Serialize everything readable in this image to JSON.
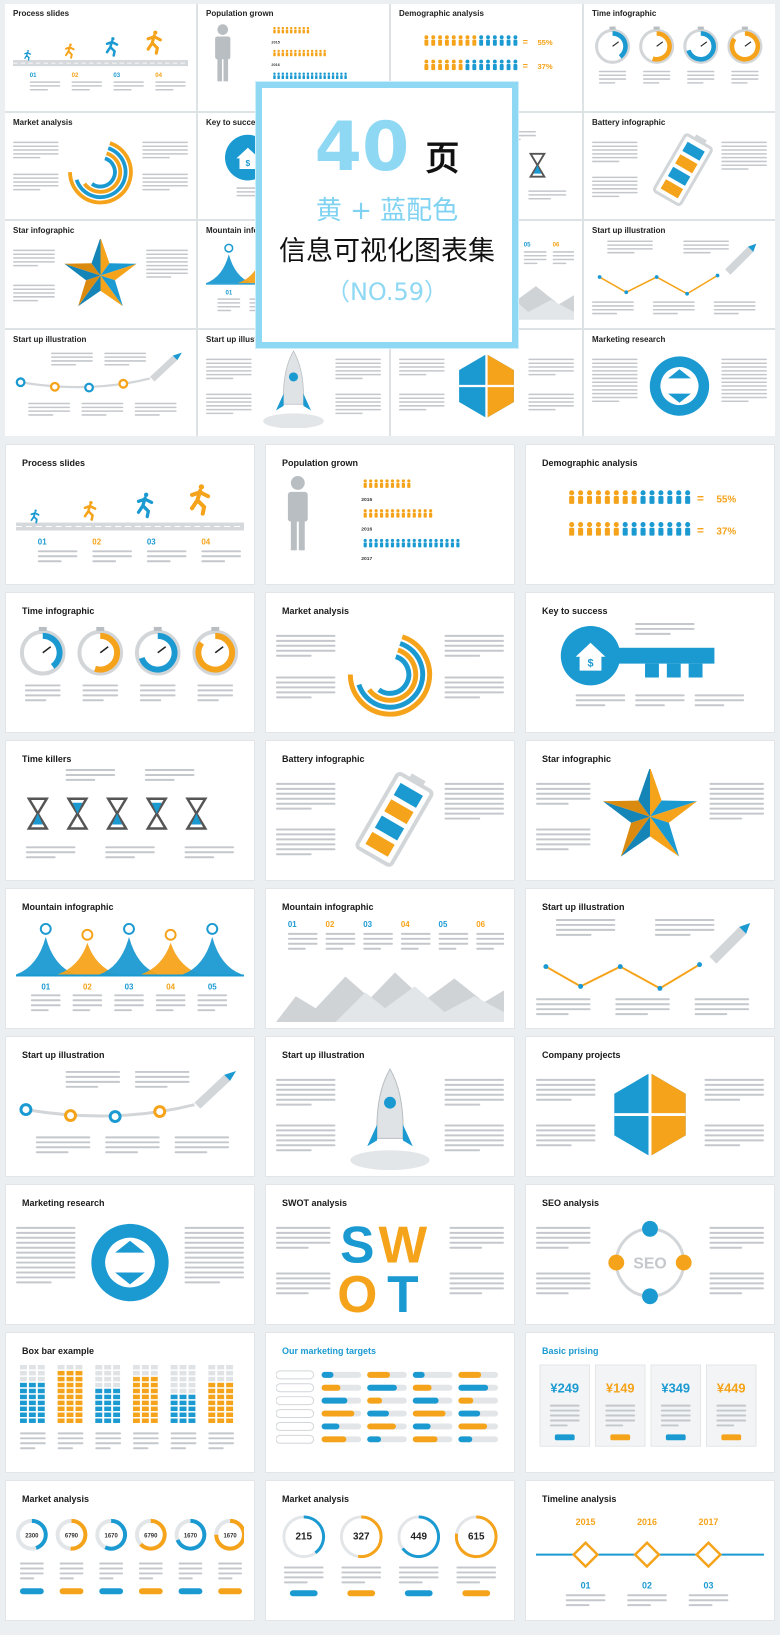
{
  "cover": {
    "count": "40",
    "unit": "页",
    "theme": "黄 + 蓝配色",
    "title": "信息可视化图表集",
    "series": "（NO.59）"
  },
  "colors": {
    "blue": "#1b9ad2",
    "orange": "#f5a31a",
    "grey": "#b9bec2",
    "cyan": "#8fd8f4"
  },
  "collage": [
    "Process slides",
    "Population grown",
    "Demographic analysis",
    "Time infographic",
    "Market analysis",
    "Key to success",
    "",
    "Battery infographic",
    "Star infographic",
    "Mountain infographic",
    "",
    "Start up illustration",
    "Start up illustration",
    "Start up illustration",
    "",
    "Marketing research"
  ],
  "slides": [
    {
      "title": "Process slides",
      "kind": "process",
      "steps": [
        "01",
        "02",
        "03",
        "04"
      ]
    },
    {
      "title": "Population grown",
      "kind": "population",
      "years": [
        "2015",
        "2016",
        "2017"
      ]
    },
    {
      "title": "Demographic analysis",
      "kind": "demographic",
      "values": [
        "55%",
        "37%"
      ]
    },
    {
      "title": "Time infographic",
      "kind": "time"
    },
    {
      "title": "Market analysis",
      "kind": "market"
    },
    {
      "title": "Key to success",
      "kind": "key"
    },
    {
      "title": "Time killers",
      "kind": "hourglass"
    },
    {
      "title": "Battery infographic",
      "kind": "battery"
    },
    {
      "title": "Star infographic",
      "kind": "star"
    },
    {
      "title": "Mountain infographic",
      "kind": "peaks",
      "steps": [
        "01",
        "02",
        "03",
        "04",
        "05"
      ]
    },
    {
      "title": "Mountain infographic",
      "kind": "mountain",
      "steps": [
        "01",
        "02",
        "03",
        "04",
        "05",
        "06"
      ]
    },
    {
      "title": "Start up illustration",
      "kind": "zigzag"
    },
    {
      "title": "Start up illustration",
      "kind": "curve"
    },
    {
      "title": "Start up illustration",
      "kind": "rocket"
    },
    {
      "title": "Company projects",
      "kind": "hexagon"
    },
    {
      "title": "Marketing research",
      "kind": "arrows"
    },
    {
      "title": "SWOT analysis",
      "kind": "swot",
      "word": "SWOT"
    },
    {
      "title": "SEO analysis",
      "kind": "seo",
      "word": "SEO"
    },
    {
      "title": "Box bar example",
      "kind": "boxbar"
    },
    {
      "title": "Our marketing targets",
      "kind": "targets",
      "blue": true
    },
    {
      "title": "Basic prising",
      "kind": "pricing",
      "blue": true,
      "prices": [
        "249",
        "149",
        "349",
        "449"
      ]
    },
    {
      "title": "Market analysis",
      "kind": "circles6",
      "values": [
        "2300",
        "6790",
        "1670",
        "6790",
        "1670",
        "1670"
      ]
    },
    {
      "title": "Market analysis",
      "kind": "circles4",
      "values": [
        "215",
        "327",
        "449",
        "615"
      ]
    },
    {
      "title": "Timeline analysis",
      "kind": "timeline",
      "years": [
        "2015",
        "2016",
        "2017"
      ],
      "steps": [
        "01",
        "02",
        "03"
      ]
    }
  ]
}
